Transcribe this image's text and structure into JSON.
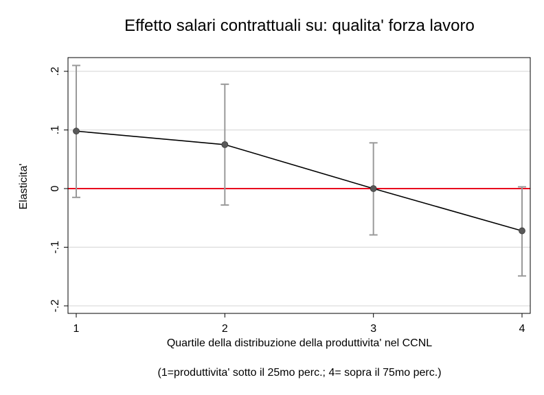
{
  "chart_data": {
    "type": "line",
    "title": "Effetto salari contrattuali su: qualita' forza lavoro",
    "xlabel": "Quartile della distribuzione della produttivita' nel CCNL",
    "ylabel": "Elasticita'",
    "note": "(1=produttivita' sotto il 25mo perc.;  4= sopra il 75mo perc.)",
    "x": [
      1,
      2,
      3,
      4
    ],
    "x_ticks": [
      "1",
      "2",
      "3",
      "4"
    ],
    "xlim": [
      0.95,
      4.05
    ],
    "ylim": [
      -0.2,
      0.2
    ],
    "y_ticks": [
      {
        "value": 0.2,
        "label": ".2"
      },
      {
        "value": 0.1,
        "label": ".1"
      },
      {
        "value": 0,
        "label": "0"
      },
      {
        "value": -0.1,
        "label": "-.1"
      },
      {
        "value": -0.2,
        "label": "-.2"
      }
    ],
    "series": [
      {
        "values": [
          0.098,
          0.075,
          0.0,
          -0.072
        ],
        "ci_low": [
          -0.015,
          -0.028,
          -0.079,
          -0.149
        ],
        "ci_high": [
          0.21,
          0.178,
          0.078,
          0.003
        ]
      }
    ],
    "reference_line": {
      "y": 0
    },
    "grid": true,
    "colors": {
      "line": "#000000",
      "marker": "#595959",
      "errorbar": "#999999",
      "reference": "#e8001c",
      "grid": "#dcdcdc",
      "frame": "#000000"
    }
  }
}
